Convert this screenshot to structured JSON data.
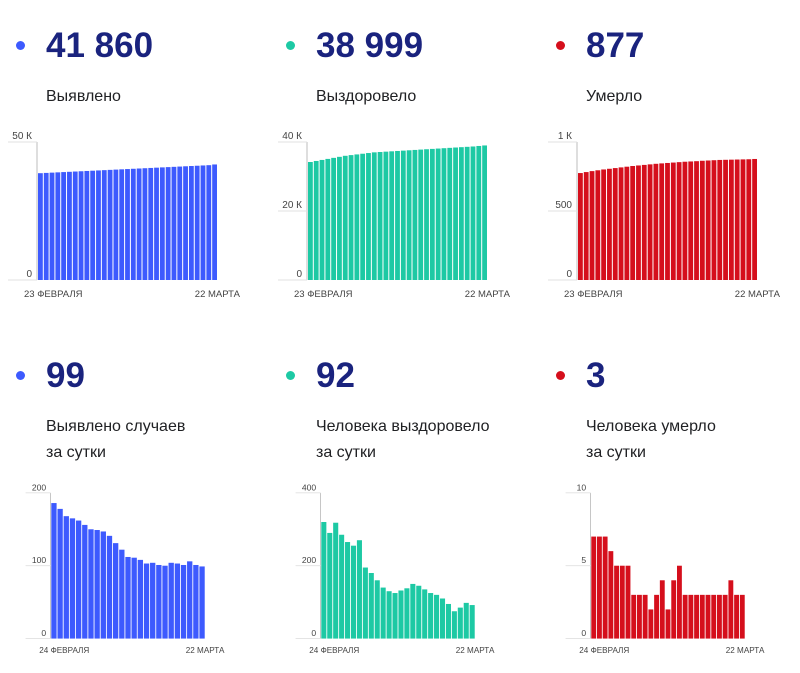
{
  "colors": {
    "blue": "#3d5afe",
    "teal": "#1dc9a4",
    "red": "#d50f1c",
    "number": "#1a237e"
  },
  "panels": [
    {
      "key": "cases_total",
      "color": "blue",
      "value": "41 860",
      "label_lines": [
        "Выявлено"
      ]
    },
    {
      "key": "recovered_total",
      "color": "teal",
      "value": "38 999",
      "label_lines": [
        "Выздоровело"
      ]
    },
    {
      "key": "deaths_total",
      "color": "red",
      "value": "877",
      "label_lines": [
        "Умерло"
      ]
    },
    {
      "key": "cases_daily",
      "color": "blue",
      "value": "99",
      "label_lines": [
        "Выявлено случаев",
        "за сутки"
      ]
    },
    {
      "key": "recovered_daily",
      "color": "teal",
      "value": "92",
      "label_lines": [
        "Человека выздоровело",
        "за сутки"
      ]
    },
    {
      "key": "deaths_daily",
      "color": "red",
      "value": "3",
      "label_lines": [
        "Человека умерло",
        "за сутки"
      ]
    }
  ],
  "chart_data": [
    {
      "type": "bar",
      "series_color": "blue",
      "ylim": [
        0,
        50000
      ],
      "yticks": [
        {
          "v": 0,
          "label": "0"
        },
        {
          "v": 50000,
          "label": "50 К"
        }
      ],
      "x_start_label": "23 ФЕВРАЛЯ",
      "x_end_label": "22 МАРТА",
      "values": [
        38700,
        38800,
        38900,
        39000,
        39100,
        39200,
        39300,
        39400,
        39500,
        39600,
        39700,
        39800,
        39900,
        40000,
        40100,
        40200,
        40300,
        40400,
        40500,
        40600,
        40700,
        40800,
        40900,
        41000,
        41100,
        41200,
        41300,
        41400,
        41500,
        41600,
        41860
      ]
    },
    {
      "type": "bar",
      "series_color": "teal",
      "ylim": [
        0,
        40000
      ],
      "yticks": [
        {
          "v": 0,
          "label": "0"
        },
        {
          "v": 20000,
          "label": "20 К"
        },
        {
          "v": 40000,
          "label": "40 К"
        }
      ],
      "x_start_label": "23 ФЕВРАЛЯ",
      "x_end_label": "22 МАРТА",
      "values": [
        34200,
        34500,
        34800,
        35100,
        35400,
        35700,
        36000,
        36200,
        36400,
        36600,
        36800,
        37000,
        37100,
        37200,
        37300,
        37400,
        37500,
        37600,
        37700,
        37800,
        37900,
        38000,
        38100,
        38200,
        38300,
        38400,
        38500,
        38600,
        38700,
        38850,
        38999
      ]
    },
    {
      "type": "bar",
      "series_color": "red",
      "ylim": [
        0,
        1000
      ],
      "yticks": [
        {
          "v": 0,
          "label": "0"
        },
        {
          "v": 500,
          "label": "500"
        },
        {
          "v": 1000,
          "label": "1 К"
        }
      ],
      "x_start_label": "23 ФЕВРАЛЯ",
      "x_end_label": "22 МАРТА",
      "values": [
        775,
        782,
        789,
        795,
        801,
        806,
        811,
        816,
        821,
        826,
        830,
        834,
        838,
        842,
        845,
        848,
        851,
        854,
        857,
        859,
        861,
        864,
        866,
        868,
        870,
        871,
        872,
        873,
        874,
        875,
        877
      ]
    },
    {
      "type": "bar",
      "series_color": "blue",
      "ylim": [
        0,
        200
      ],
      "yticks": [
        {
          "v": 0,
          "label": "0"
        },
        {
          "v": 100,
          "label": "100"
        },
        {
          "v": 200,
          "label": "200"
        }
      ],
      "x_start_label": "24 ФЕВРАЛЯ",
      "x_end_label": "22 МАРТА",
      "values": [
        186,
        178,
        168,
        165,
        162,
        156,
        150,
        149,
        147,
        141,
        131,
        122,
        112,
        111,
        108,
        103,
        104,
        101,
        100,
        104,
        103,
        101,
        106,
        101,
        99
      ]
    },
    {
      "type": "bar",
      "series_color": "teal",
      "ylim": [
        0,
        400
      ],
      "yticks": [
        {
          "v": 0,
          "label": "0"
        },
        {
          "v": 200,
          "label": "200"
        },
        {
          "v": 400,
          "label": "400"
        }
      ],
      "x_start_label": "24 ФЕВРАЛЯ",
      "x_end_label": "22 МАРТА",
      "values": [
        320,
        290,
        318,
        285,
        265,
        255,
        270,
        195,
        180,
        160,
        140,
        130,
        125,
        132,
        138,
        150,
        145,
        135,
        125,
        120,
        110,
        95,
        75,
        85,
        98,
        92
      ]
    },
    {
      "type": "bar",
      "series_color": "red",
      "ylim": [
        0,
        10
      ],
      "yticks": [
        {
          "v": 0,
          "label": "0"
        },
        {
          "v": 5,
          "label": "5"
        },
        {
          "v": 10,
          "label": "10"
        }
      ],
      "x_start_label": "24 ФЕВРАЛЯ",
      "x_end_label": "22 МАРТА",
      "values": [
        7,
        7,
        7,
        6,
        5,
        5,
        5,
        3,
        3,
        3,
        2,
        3,
        4,
        2,
        4,
        5,
        3,
        3,
        3,
        3,
        3,
        3,
        3,
        3,
        4,
        3,
        3
      ]
    }
  ]
}
